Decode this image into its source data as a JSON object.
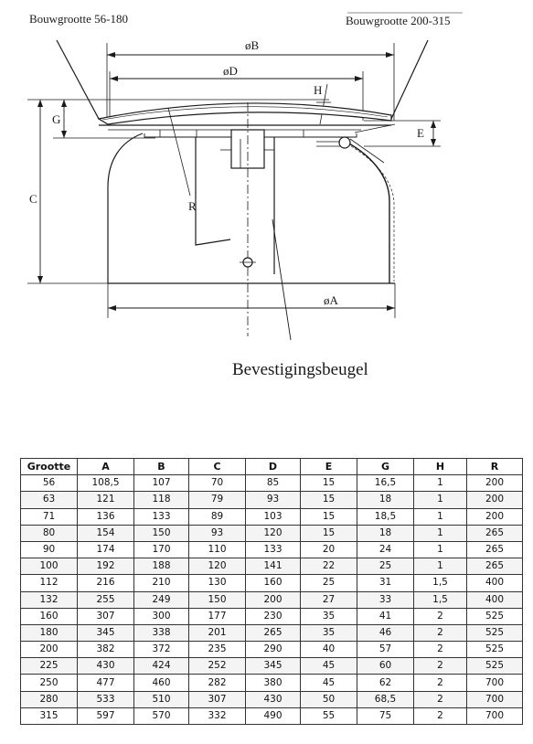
{
  "drawing": {
    "left_caption": "Bouwgrootte 56-180",
    "right_caption": "Bouwgrootte 200-315",
    "bracket_caption": "Bevestigingsbeugel",
    "dim_labels": {
      "B": "øB",
      "D": "øD",
      "A": "øA",
      "H": "H",
      "G": "G",
      "E": "E",
      "C": "C",
      "R": "R"
    }
  },
  "table": {
    "headers": [
      "Grootte",
      "A",
      "B",
      "C",
      "D",
      "E",
      "G",
      "H",
      "R"
    ],
    "rows": [
      [
        "56",
        "108,5",
        "107",
        "70",
        "85",
        "15",
        "16,5",
        "1",
        "200"
      ],
      [
        "63",
        "121",
        "118",
        "79",
        "93",
        "15",
        "18",
        "1",
        "200"
      ],
      [
        "71",
        "136",
        "133",
        "89",
        "103",
        "15",
        "18,5",
        "1",
        "200"
      ],
      [
        "80",
        "154",
        "150",
        "93",
        "120",
        "15",
        "18",
        "1",
        "265"
      ],
      [
        "90",
        "174",
        "170",
        "110",
        "133",
        "20",
        "24",
        "1",
        "265"
      ],
      [
        "100",
        "192",
        "188",
        "120",
        "141",
        "22",
        "25",
        "1",
        "265"
      ],
      [
        "112",
        "216",
        "210",
        "130",
        "160",
        "25",
        "31",
        "1,5",
        "400"
      ],
      [
        "132",
        "255",
        "249",
        "150",
        "200",
        "27",
        "33",
        "1,5",
        "400"
      ],
      [
        "160",
        "307",
        "300",
        "177",
        "230",
        "35",
        "41",
        "2",
        "525"
      ],
      [
        "180",
        "345",
        "338",
        "201",
        "265",
        "35",
        "46",
        "2",
        "525"
      ],
      [
        "200",
        "382",
        "372",
        "235",
        "290",
        "40",
        "57",
        "2",
        "525"
      ],
      [
        "225",
        "430",
        "424",
        "252",
        "345",
        "45",
        "60",
        "2",
        "525"
      ],
      [
        "250",
        "477",
        "460",
        "282",
        "380",
        "45",
        "62",
        "2",
        "700"
      ],
      [
        "280",
        "533",
        "510",
        "307",
        "430",
        "50",
        "68,5",
        "2",
        "700"
      ],
      [
        "315",
        "597",
        "570",
        "332",
        "490",
        "55",
        "75",
        "2",
        "700"
      ]
    ]
  }
}
